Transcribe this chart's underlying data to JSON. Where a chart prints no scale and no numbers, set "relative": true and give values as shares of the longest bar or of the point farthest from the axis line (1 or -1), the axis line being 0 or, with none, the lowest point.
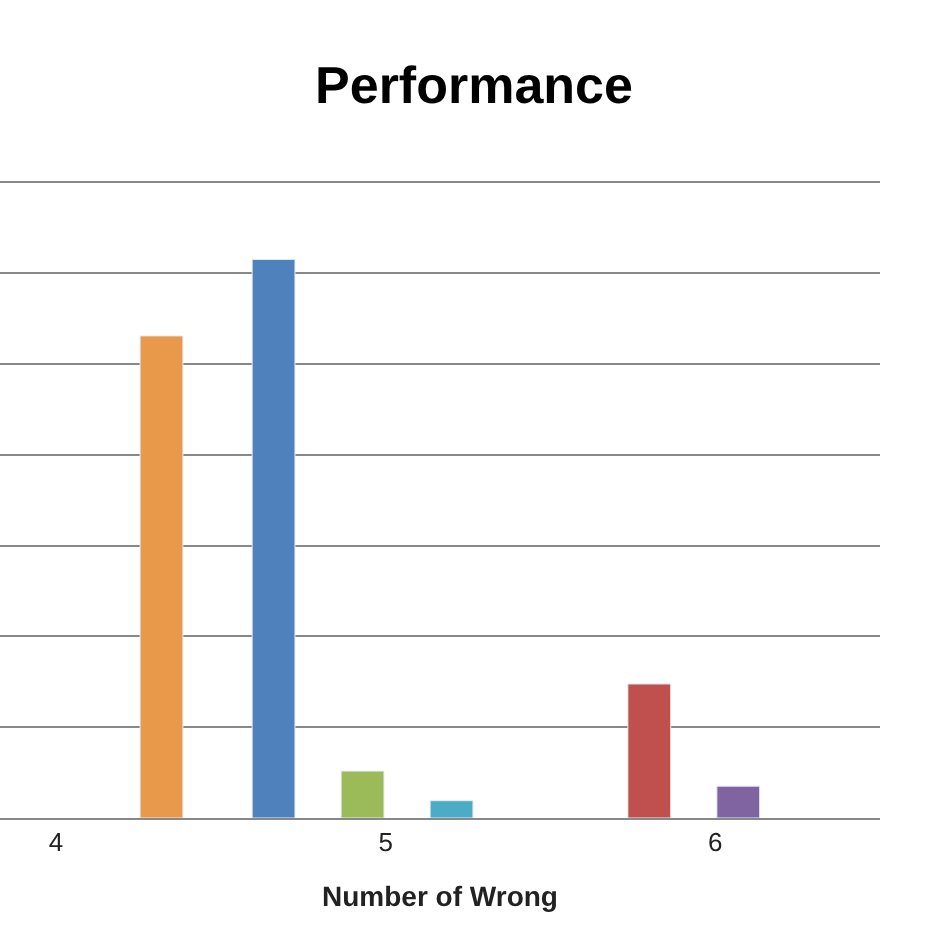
{
  "chart_data": {
    "type": "bar",
    "title": "Performance",
    "xlabel": "Number of Wrong",
    "x": [
      4.32,
      4.66,
      4.93,
      5.2,
      5.8,
      6.07
    ],
    "values": [
      0.863,
      1,
      0.084,
      0.031,
      0.24,
      0.057
    ],
    "colors": [
      "#e8994a",
      "#4f81bd",
      "#9bbb59",
      "#4bacc6",
      "#c0504d",
      "#8064a2"
    ],
    "relative": true,
    "xlim": [
      3.83,
      6.5
    ],
    "xticks": [
      4,
      5,
      6
    ],
    "grid": "y"
  }
}
